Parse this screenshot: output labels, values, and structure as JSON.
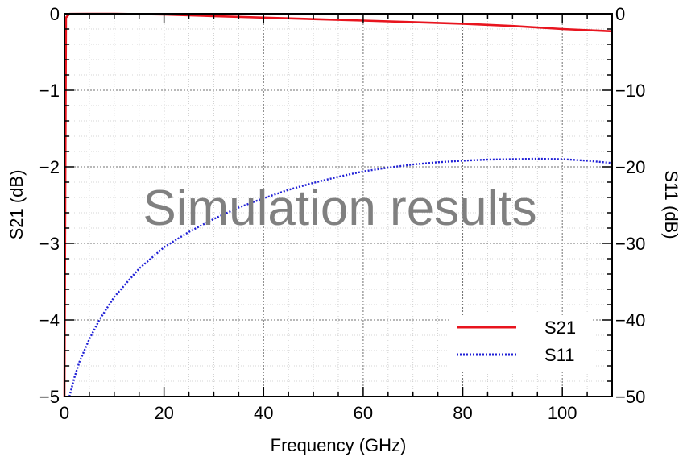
{
  "chart_data": {
    "type": "line",
    "xlabel": "Frequency (GHz)",
    "ylabel_left": "S21 (dB)",
    "ylabel_right": "S11 (dB)",
    "xlim": [
      0,
      110
    ],
    "ylim_left": [
      -5,
      0
    ],
    "ylim_right": [
      -50,
      0
    ],
    "x_ticks": [
      0,
      20,
      40,
      60,
      80,
      100
    ],
    "x_tick_labels": [
      "0",
      "20",
      "40",
      "60",
      "80",
      "100"
    ],
    "y_left_ticks": [
      0,
      -1,
      -2,
      -3,
      -4,
      -5
    ],
    "y_left_tick_labels": [
      "0",
      "−1",
      "−2",
      "−3",
      "−4",
      "−5"
    ],
    "y_right_ticks": [
      0,
      -10,
      -20,
      -30,
      -40,
      -50
    ],
    "y_right_tick_labels": [
      "0",
      "−10",
      "−20",
      "−30",
      "−40",
      "−50"
    ],
    "grid": true,
    "legend_position": "bottom-right",
    "annotation": "Simulation results",
    "series": [
      {
        "name": "S21",
        "axis": "left",
        "color": "#e8141e",
        "style": "solid",
        "x": [
          0,
          0.3,
          1,
          5,
          10,
          20,
          30,
          40,
          50,
          60,
          70,
          80,
          90,
          100,
          110
        ],
        "y": [
          -5,
          -0.05,
          -0.002,
          0,
          0,
          -0.01,
          -0.03,
          -0.05,
          -0.07,
          -0.09,
          -0.11,
          -0.13,
          -0.16,
          -0.2,
          -0.23
        ]
      },
      {
        "name": "S11",
        "axis": "right",
        "color": "#1f1fd6",
        "style": "dotted",
        "x": [
          1,
          2,
          3,
          5,
          7,
          10,
          15,
          20,
          25,
          30,
          35,
          40,
          45,
          50,
          55,
          60,
          65,
          70,
          75,
          80,
          85,
          90,
          95,
          100,
          105,
          110
        ],
        "y": [
          -50,
          -47.5,
          -45.5,
          -42.5,
          -40,
          -37,
          -33.3,
          -30.5,
          -28.5,
          -26.8,
          -25.3,
          -24.1,
          -23,
          -22.1,
          -21.3,
          -20.6,
          -20.1,
          -19.7,
          -19.4,
          -19.2,
          -19.05,
          -19.0,
          -18.95,
          -19.0,
          -19.2,
          -19.5
        ]
      }
    ]
  }
}
